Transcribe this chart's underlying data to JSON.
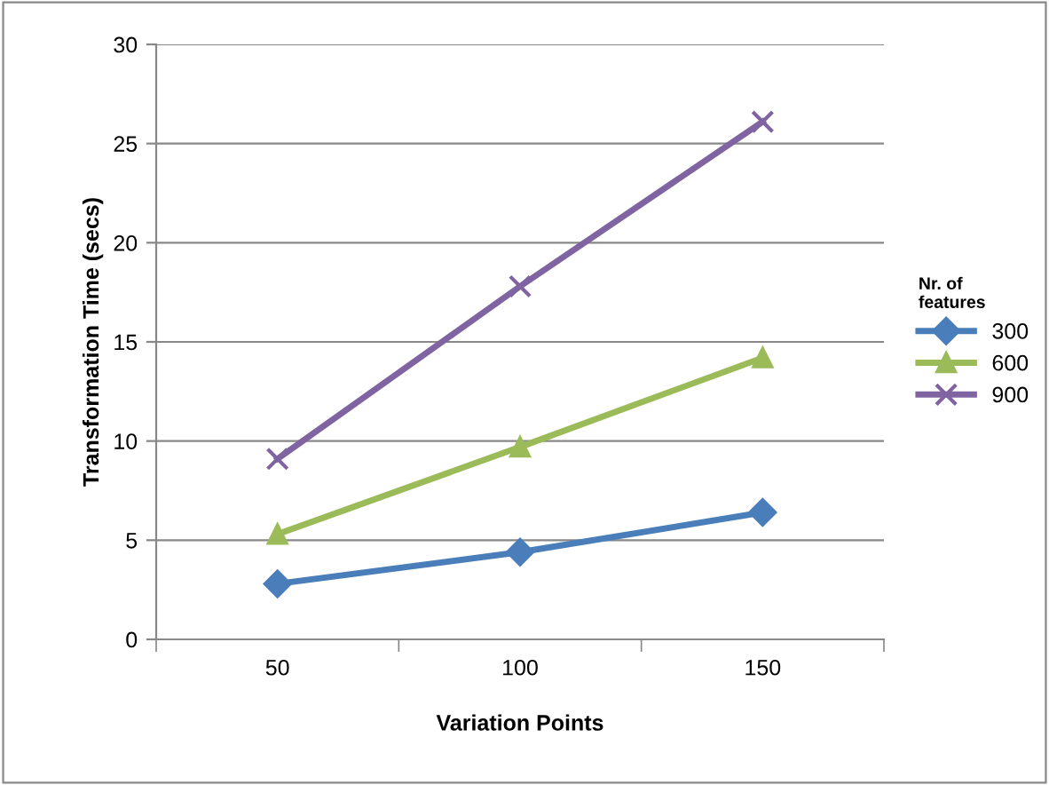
{
  "chart_data": {
    "type": "line",
    "xlabel": "Variation Points",
    "ylabel": "Transformation Time (secs)",
    "legend_title": "Nr. of\nfeatures",
    "categories": [
      "50",
      "100",
      "150"
    ],
    "series": [
      {
        "name": "300",
        "color": "#4a7ebb",
        "marker": "diamond",
        "values": [
          2.8,
          4.4,
          6.4
        ]
      },
      {
        "name": "600",
        "color": "#9bbb59",
        "marker": "triangle",
        "values": [
          5.3,
          9.7,
          14.2
        ]
      },
      {
        "name": "900",
        "color": "#8064a2",
        "marker": "cross",
        "values": [
          9.1,
          17.8,
          26.1
        ]
      }
    ],
    "ylim": [
      0,
      30
    ],
    "yticks": [
      0,
      5,
      10,
      15,
      20,
      25,
      30
    ],
    "grid": "y",
    "legend": "right",
    "line_style": "solid"
  }
}
